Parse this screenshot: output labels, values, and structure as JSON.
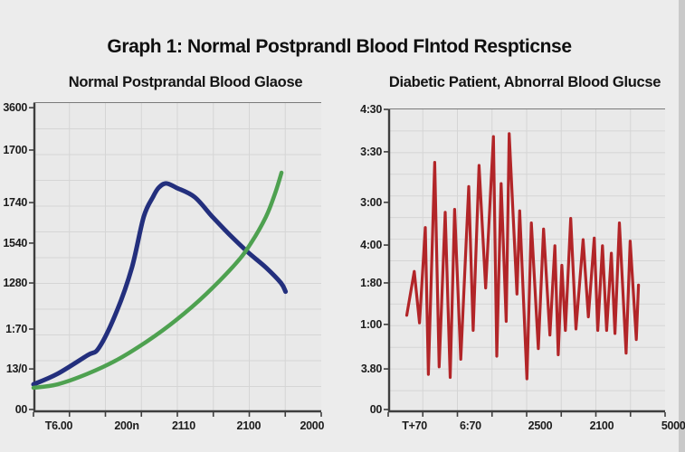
{
  "page": {
    "title": "Graph 1: Normal Postprandl Blood Flntod Respticnse",
    "background": "#ececec"
  },
  "colors": {
    "text": "#141414",
    "axis": "#3e3e3e",
    "grid": "#d5d5d5",
    "plot_bg": "#e9e9e9",
    "blue": "#232f7d",
    "green": "#4ea150",
    "red": "#b22528"
  },
  "chart_data": [
    {
      "type": "line",
      "title": "Normal Postprandal Blood Glaose",
      "legend": "none",
      "grid": {
        "cols": 8,
        "rows": 12,
        "visible": true
      },
      "x_ticks": [
        {
          "label": "T6.00",
          "pos": 0.088
        },
        {
          "label": "200n",
          "pos": 0.324
        },
        {
          "label": "2110",
          "pos": 0.522
        },
        {
          "label": "2100",
          "pos": 0.748
        },
        {
          "label": "2000",
          "pos": 0.968
        }
      ],
      "y_ticks": [
        {
          "label": "3600",
          "pos": 0.015
        },
        {
          "label": "1700",
          "pos": 0.152
        },
        {
          "label": "1740",
          "pos": 0.322
        },
        {
          "label": "1540",
          "pos": 0.453
        },
        {
          "label": "1280",
          "pos": 0.582
        },
        {
          "label": "1:70",
          "pos": 0.731
        },
        {
          "label": "13/0",
          "pos": 0.86
        },
        {
          "label": "00",
          "pos": 0.991
        }
      ],
      "units": "points are [x_fraction_across_plot, y_fraction_from_top]",
      "series": [
        {
          "name": "dark-blue-glucose-curve",
          "color_key": "blue",
          "stroke_width": 5,
          "smooth": true,
          "points": [
            [
              0.0,
              0.91
            ],
            [
              0.083,
              0.876
            ],
            [
              0.187,
              0.816
            ],
            [
              0.228,
              0.791
            ],
            [
              0.29,
              0.672
            ],
            [
              0.342,
              0.532
            ],
            [
              0.383,
              0.368
            ],
            [
              0.415,
              0.304
            ],
            [
              0.435,
              0.274
            ],
            [
              0.461,
              0.26
            ],
            [
              0.497,
              0.274
            ],
            [
              0.56,
              0.304
            ],
            [
              0.622,
              0.368
            ],
            [
              0.684,
              0.428
            ],
            [
              0.746,
              0.483
            ],
            [
              0.808,
              0.532
            ],
            [
              0.86,
              0.582
            ],
            [
              0.876,
              0.61
            ]
          ]
        },
        {
          "name": "green-rising-curve",
          "color_key": "green",
          "stroke_width": 4.5,
          "smooth": true,
          "points": [
            [
              0.0,
              0.921
            ],
            [
              0.083,
              0.91
            ],
            [
              0.187,
              0.876
            ],
            [
              0.29,
              0.831
            ],
            [
              0.394,
              0.771
            ],
            [
              0.497,
              0.701
            ],
            [
              0.601,
              0.617
            ],
            [
              0.705,
              0.517
            ],
            [
              0.756,
              0.453
            ],
            [
              0.808,
              0.368
            ],
            [
              0.839,
              0.294
            ],
            [
              0.862,
              0.225
            ]
          ]
        }
      ]
    },
    {
      "type": "line",
      "title": "Diabetic Patient, Abnorral Blood Glucse",
      "legend": "none",
      "grid": {
        "cols": 8,
        "rows": 14,
        "visible": true
      },
      "x_ticks": [
        {
          "label": "T+70",
          "pos": 0.095
        },
        {
          "label": "6:70",
          "pos": 0.297
        },
        {
          "label": "2500",
          "pos": 0.549
        },
        {
          "label": "2100",
          "pos": 0.771
        },
        {
          "label": "5000",
          "pos": 1.03
        }
      ],
      "y_ticks": [
        {
          "label": "4:30",
          "pos": 0.0
        },
        {
          "label": "3:30",
          "pos": 0.14
        },
        {
          "label": "3:00",
          "pos": 0.307
        },
        {
          "label": "4:00",
          "pos": 0.448
        },
        {
          "label": "1:80",
          "pos": 0.573
        },
        {
          "label": "1:00",
          "pos": 0.71
        },
        {
          "label": "3.80",
          "pos": 0.857
        },
        {
          "label": "00",
          "pos": 0.991
        }
      ],
      "units": "points are [x_fraction_across_plot, y_fraction_from_top]",
      "series": [
        {
          "name": "red-spiky-glucose-line",
          "color_key": "red",
          "stroke_width": 3.2,
          "smooth": false,
          "points": [
            [
              0.067,
              0.68
            ],
            [
              0.094,
              0.535
            ],
            [
              0.113,
              0.705
            ],
            [
              0.134,
              0.39
            ],
            [
              0.145,
              0.875
            ],
            [
              0.168,
              0.175
            ],
            [
              0.184,
              0.85
            ],
            [
              0.206,
              0.34
            ],
            [
              0.224,
              0.885
            ],
            [
              0.24,
              0.33
            ],
            [
              0.262,
              0.825
            ],
            [
              0.291,
              0.255
            ],
            [
              0.307,
              0.73
            ],
            [
              0.328,
              0.185
            ],
            [
              0.352,
              0.59
            ],
            [
              0.38,
              0.09
            ],
            [
              0.392,
              0.815
            ],
            [
              0.408,
              0.245
            ],
            [
              0.426,
              0.7
            ],
            [
              0.437,
              0.08
            ],
            [
              0.465,
              0.61
            ],
            [
              0.475,
              0.335
            ],
            [
              0.501,
              0.89
            ],
            [
              0.517,
              0.375
            ],
            [
              0.542,
              0.79
            ],
            [
              0.561,
              0.395
            ],
            [
              0.584,
              0.745
            ],
            [
              0.602,
              0.45
            ],
            [
              0.614,
              0.81
            ],
            [
              0.627,
              0.515
            ],
            [
              0.64,
              0.73
            ],
            [
              0.659,
              0.36
            ],
            [
              0.678,
              0.725
            ],
            [
              0.704,
              0.43
            ],
            [
              0.723,
              0.685
            ],
            [
              0.744,
              0.425
            ],
            [
              0.757,
              0.73
            ],
            [
              0.774,
              0.45
            ],
            [
              0.789,
              0.73
            ],
            [
              0.806,
              0.475
            ],
            [
              0.819,
              0.74
            ],
            [
              0.835,
              0.375
            ],
            [
              0.859,
              0.805
            ],
            [
              0.874,
              0.435
            ],
            [
              0.896,
              0.76
            ],
            [
              0.904,
              0.58
            ]
          ]
        }
      ]
    }
  ]
}
